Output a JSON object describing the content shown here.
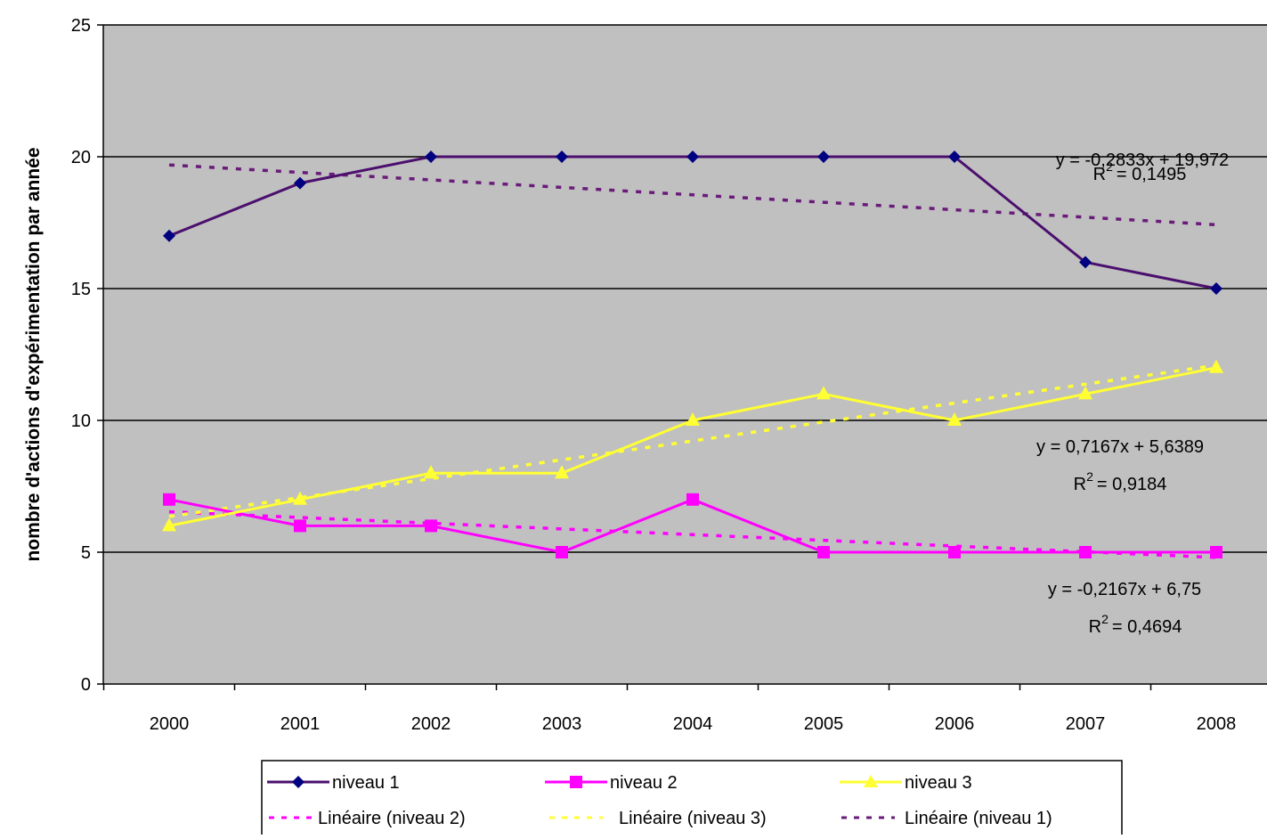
{
  "chart_data": {
    "type": "line",
    "title": "",
    "xlabel": "",
    "ylabel": "nombre d'actions d'expérimentation par année",
    "categories": [
      "2000",
      "2001",
      "2002",
      "2003",
      "2004",
      "2005",
      "2006",
      "2007",
      "2008"
    ],
    "ylim": [
      0,
      25
    ],
    "yticks": [
      "0",
      "5",
      "10",
      "15",
      "20",
      "25"
    ],
    "grid": true,
    "background": "#c0c0c0",
    "series": [
      {
        "name": "niveau 1",
        "values": [
          17,
          19,
          20,
          20,
          20,
          20,
          20,
          16,
          15
        ],
        "color": "#4b0f6e",
        "marker": "diamond",
        "marker_color": "#000080"
      },
      {
        "name": "niveau 2",
        "values": [
          7,
          6,
          6,
          5,
          7,
          5,
          5,
          5,
          5
        ],
        "color": "#ff00ff",
        "marker": "square",
        "marker_color": "#ff00ff"
      },
      {
        "name": "niveau 3",
        "values": [
          6,
          7,
          8,
          8,
          10,
          11,
          10,
          11,
          12
        ],
        "color": "#ffff33",
        "marker": "triangle",
        "marker_color": "#ffff33"
      }
    ],
    "trendlines": [
      {
        "name": "Linéaire (niveau 2)",
        "slope": -0.2167,
        "intercept": 6.75,
        "color": "#ff00ff",
        "equation": "y = -0,2167x + 6,75",
        "r2_label": "R",
        "r2_sup": "2",
        "r2_value": "= 0,4694"
      },
      {
        "name": "Linéaire (niveau 3)",
        "slope": 0.7167,
        "intercept": 5.6389,
        "color": "#ffff33",
        "equation": "y = 0,7167x + 5,6389",
        "r2_label": "R",
        "r2_sup": "2",
        "r2_value": "= 0,9184"
      },
      {
        "name": "Linéaire (niveau 1)",
        "slope": -0.2833,
        "intercept": 19.972,
        "color": "#6a1b7a",
        "equation": "y = -0,2833x + 19,972",
        "r2_label": "R",
        "r2_sup": "2",
        "r2_value": "= 0,1495"
      }
    ],
    "legend": {
      "placement": "bottom",
      "items": [
        "niveau 1",
        "niveau 2",
        "niveau 3",
        "Linéaire (niveau 2)",
        "Linéaire (niveau 3)",
        "Linéaire (niveau 1)"
      ]
    }
  }
}
